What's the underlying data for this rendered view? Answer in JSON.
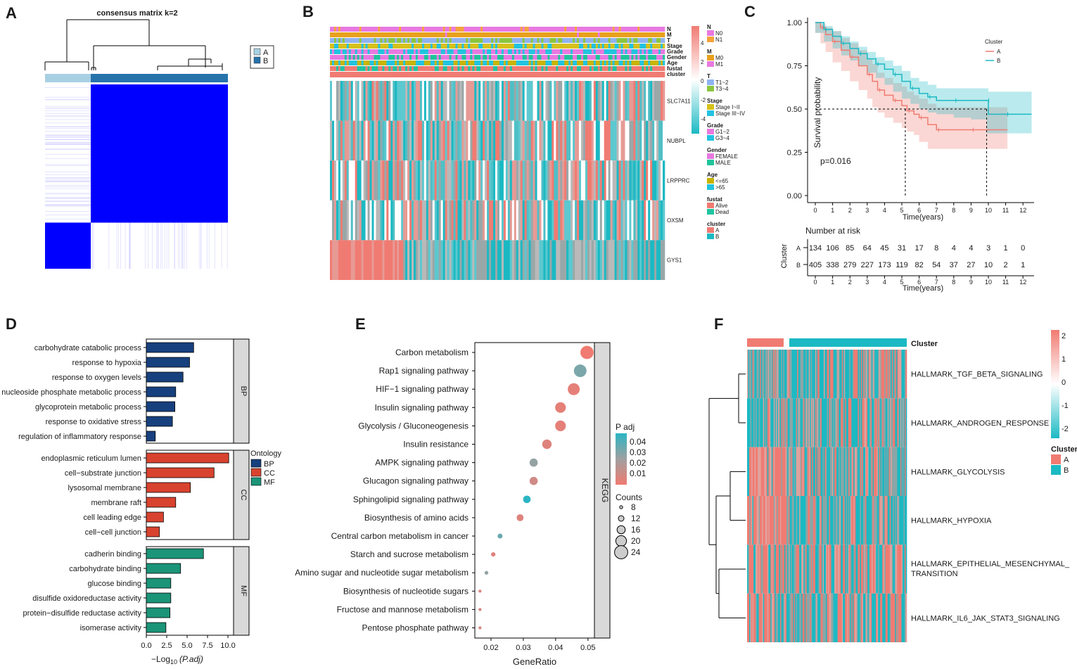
{
  "colors": {
    "heat_blue": "#0000ff",
    "cluster_a": "#f07b72",
    "cluster_b": "#1bb9c3",
    "bp": "#17407e",
    "cc": "#d8432f",
    "mf": "#1b9478",
    "strip_gray": "#d9d9d9"
  },
  "chart_data": [
    {
      "panel": "A",
      "type": "heatmap",
      "title": "consensus matrix k=2",
      "legend": [
        {
          "label": "A",
          "color": "#a8d0e3"
        },
        {
          "label": "B",
          "color": "#2673ac"
        }
      ],
      "groups": [
        {
          "name": "A",
          "fraction": 0.25
        },
        {
          "name": "B",
          "fraction": 0.75
        }
      ]
    },
    {
      "panel": "B",
      "type": "heatmap",
      "annotation_tracks": [
        "N",
        "M",
        "T",
        "Stage",
        "Grade",
        "Gender",
        "Age",
        "fustat",
        "cluster"
      ],
      "genes": [
        "SLC7A11",
        "NUBPL",
        "LRPPRC",
        "OXSM",
        "GYS1"
      ],
      "scale_ticks": [
        4,
        2,
        0,
        -2,
        -4
      ],
      "legend_groups": [
        {
          "title": "N",
          "items": [
            {
              "label": "N0",
              "color": "#e879e0"
            },
            {
              "label": "N1",
              "color": "#f5a33b"
            }
          ]
        },
        {
          "title": "M",
          "items": [
            {
              "label": "M0",
              "color": "#e8a01d"
            },
            {
              "label": "M1",
              "color": "#e879e0"
            }
          ]
        },
        {
          "title": "T",
          "items": [
            {
              "label": "T1~2",
              "color": "#8fb3f2"
            },
            {
              "label": "T3~4",
              "color": "#8cc63f"
            }
          ]
        },
        {
          "title": "Stage",
          "items": [
            {
              "label": "Stage I~II",
              "color": "#d6c11b"
            },
            {
              "label": "Stage III~IV",
              "color": "#22c3e0"
            }
          ]
        },
        {
          "title": "Grade",
          "items": [
            {
              "label": "G1~2",
              "color": "#e879e0"
            },
            {
              "label": "G3~4",
              "color": "#22c3e0"
            }
          ]
        },
        {
          "title": "Gender",
          "items": [
            {
              "label": "FEMALE",
              "color": "#e879e0"
            },
            {
              "label": "MALE",
              "color": "#1fc49b"
            }
          ]
        },
        {
          "title": "Age",
          "items": [
            {
              "label": "<=65",
              "color": "#c8b400"
            },
            {
              "label": ">65",
              "color": "#22c3e0"
            }
          ]
        },
        {
          "title": "fustat",
          "items": [
            {
              "label": "Alive",
              "color": "#f07b72"
            },
            {
              "label": "Dead",
              "color": "#1fc4a0"
            }
          ]
        },
        {
          "title": "cluster",
          "items": [
            {
              "label": "A",
              "color": "#f07b72"
            },
            {
              "label": "B",
              "color": "#1bb9c3"
            }
          ]
        }
      ]
    },
    {
      "panel": "C",
      "type": "line",
      "title": "",
      "xlabel": "Time(years)",
      "ylabel": "Survival probability",
      "xlim": [
        -0.5,
        13
      ],
      "ylim": [
        0,
        1
      ],
      "x_ticks": [
        0,
        1,
        2,
        3,
        4,
        5,
        6,
        7,
        8,
        9,
        10,
        11,
        12
      ],
      "y_ticks": [
        "0.00",
        "0.25",
        "0.50",
        "0.75",
        "1.00"
      ],
      "legend_title": "Cluster",
      "pvalue": "p=0.016",
      "median_survival": {
        "A": 5.2,
        "B": 9.9
      },
      "series": [
        {
          "name": "A",
          "color": "#f07b72",
          "x": [
            0,
            0.3,
            0.6,
            1,
            1.5,
            2,
            2.5,
            3,
            3.3,
            3.6,
            4,
            4.5,
            5,
            5.3,
            5.7,
            6,
            6.5,
            7,
            8,
            9,
            10,
            11.1
          ],
          "y": [
            1,
            0.97,
            0.93,
            0.89,
            0.84,
            0.8,
            0.75,
            0.7,
            0.66,
            0.61,
            0.58,
            0.55,
            0.52,
            0.49,
            0.47,
            0.45,
            0.41,
            0.38,
            0.38,
            0.38,
            0.38,
            0.38
          ],
          "ci_lower": [
            1,
            0.94,
            0.88,
            0.83,
            0.77,
            0.72,
            0.66,
            0.61,
            0.56,
            0.51,
            0.48,
            0.45,
            0.42,
            0.39,
            0.37,
            0.35,
            0.31,
            0.27,
            0.27,
            0.27,
            0.27,
            0.27
          ],
          "ci_upper": [
            1,
            0.99,
            0.97,
            0.95,
            0.91,
            0.88,
            0.84,
            0.79,
            0.76,
            0.71,
            0.68,
            0.65,
            0.63,
            0.6,
            0.58,
            0.56,
            0.53,
            0.51,
            0.51,
            0.51,
            0.51,
            0.51
          ]
        },
        {
          "name": "B",
          "color": "#1bb9c3",
          "x": [
            0,
            0.5,
            1,
            1.5,
            2,
            2.5,
            3,
            3.5,
            4,
            4.5,
            5,
            5.5,
            6,
            6.5,
            7,
            8,
            9,
            9.9,
            10,
            11,
            12.5
          ],
          "y": [
            1,
            0.96,
            0.92,
            0.88,
            0.85,
            0.82,
            0.79,
            0.76,
            0.73,
            0.7,
            0.66,
            0.62,
            0.59,
            0.57,
            0.55,
            0.55,
            0.55,
            0.55,
            0.47,
            0.47,
            0.47
          ],
          "ci_lower": [
            1,
            0.94,
            0.89,
            0.85,
            0.81,
            0.78,
            0.75,
            0.71,
            0.68,
            0.64,
            0.6,
            0.56,
            0.53,
            0.5,
            0.48,
            0.47,
            0.45,
            0.44,
            0.36,
            0.36,
            0.36
          ],
          "ci_upper": [
            1,
            0.98,
            0.95,
            0.92,
            0.89,
            0.86,
            0.83,
            0.8,
            0.78,
            0.75,
            0.72,
            0.68,
            0.66,
            0.64,
            0.62,
            0.62,
            0.62,
            0.62,
            0.6,
            0.6,
            0.6
          ]
        }
      ],
      "risk_table": {
        "title": "Number at risk",
        "ylabel": "Cluster",
        "xlabel": "Time(years)",
        "rows": [
          {
            "name": "A",
            "values": [
              134,
              106,
              85,
              64,
              45,
              31,
              17,
              8,
              4,
              4,
              3,
              1,
              0
            ]
          },
          {
            "name": "B",
            "values": [
              405,
              338,
              279,
              227,
              173,
              119,
              82,
              54,
              37,
              27,
              10,
              2,
              1
            ]
          }
        ]
      }
    },
    {
      "panel": "D",
      "type": "bar",
      "orientation": "horizontal",
      "xlabel": "−Log",
      "xlabel_sub": "10",
      "xlabel_tail": "(P.adj)",
      "xlim": [
        0,
        10.5
      ],
      "x_ticks": [
        "0.0",
        "2.5",
        "5.0",
        "7.5",
        "10.0"
      ],
      "legend_title": "Ontology",
      "groups": [
        {
          "name": "BP",
          "color": "#17407e",
          "categories": [
            "carbohydrate catabolic process",
            "response to hypoxia",
            "response to oxygen levels",
            "nucleoside phosphate metabolic process",
            "glycoprotein metabolic process",
            "response to oxidative stress",
            "regulation of inflammatory response"
          ],
          "values": [
            5.8,
            5.3,
            4.5,
            3.6,
            3.5,
            3.2,
            1.1
          ]
        },
        {
          "name": "CC",
          "color": "#d8432f",
          "categories": [
            "endoplasmic reticulum lumen",
            "cell−substrate junction",
            "lysosomal membrane",
            "membrane raft",
            "cell leading edge",
            "cell−cell junction"
          ],
          "values": [
            10.1,
            8.3,
            5.4,
            3.6,
            2.1,
            1.6
          ]
        },
        {
          "name": "MF",
          "color": "#1b9478",
          "categories": [
            "cadherin binding",
            "carbohydrate binding",
            "glucose binding",
            "disulfide oxidoreductase activity",
            "protein−disulfide reductase activity",
            "isomerase activity"
          ],
          "values": [
            7.0,
            4.2,
            3.0,
            3.0,
            2.9,
            2.4
          ]
        }
      ]
    },
    {
      "panel": "E",
      "type": "scatter",
      "xlabel": "GeneRatio",
      "xlim": [
        0.015,
        0.052
      ],
      "x_ticks": [
        "0.02",
        "0.03",
        "0.04",
        "0.05"
      ],
      "facet": "KEGG",
      "color_legend_title": "P adj",
      "color_ticks": [
        "0.04",
        "0.03",
        "0.02",
        "0.01"
      ],
      "size_legend_title": "Counts",
      "size_ticks": [
        8,
        12,
        16,
        20,
        24
      ],
      "points": [
        {
          "term": "Carbon metabolism",
          "x": 0.0497,
          "count": 24,
          "padj": 0.001
        },
        {
          "term": "Rap1 signaling pathway",
          "x": 0.0476,
          "count": 23,
          "padj": 0.03
        },
        {
          "term": "HIF−1 signaling pathway",
          "x": 0.0456,
          "count": 22,
          "padj": 0.004
        },
        {
          "term": "Insulin signaling pathway",
          "x": 0.0415,
          "count": 20,
          "padj": 0.004
        },
        {
          "term": "Glycolysis / Gluconeogenesis",
          "x": 0.0415,
          "count": 20,
          "padj": 0.004
        },
        {
          "term": "Insulin resistance",
          "x": 0.0373,
          "count": 18,
          "padj": 0.006
        },
        {
          "term": "AMPK signaling pathway",
          "x": 0.0332,
          "count": 16,
          "padj": 0.025
        },
        {
          "term": "Glucagon signaling pathway",
          "x": 0.0332,
          "count": 16,
          "padj": 0.01
        },
        {
          "term": "Sphingolipid signaling pathway",
          "x": 0.0311,
          "count": 15,
          "padj": 0.045
        },
        {
          "term": "Biosynthesis of amino acids",
          "x": 0.029,
          "count": 14,
          "padj": 0.006
        },
        {
          "term": "Central carbon metabolism in cancer",
          "x": 0.0228,
          "count": 11,
          "padj": 0.033
        },
        {
          "term": "Starch and sucrose metabolism",
          "x": 0.0207,
          "count": 10,
          "padj": 0.006
        },
        {
          "term": "Amino sugar and nucleotide sugar metabolism",
          "x": 0.0186,
          "count": 9,
          "padj": 0.025
        },
        {
          "term": "Biosynthesis of nucleotide sugars",
          "x": 0.0166,
          "count": 8,
          "padj": 0.008
        },
        {
          "term": "Fructose and mannose metabolism",
          "x": 0.0166,
          "count": 8,
          "padj": 0.008
        },
        {
          "term": "Pentose phosphate pathway",
          "x": 0.0166,
          "count": 8,
          "padj": 0.008
        }
      ]
    },
    {
      "panel": "F",
      "type": "heatmap",
      "column_annotation": "Cluster",
      "legend_title": "Cluster",
      "legend_items": [
        {
          "label": "A",
          "color": "#f07b72"
        },
        {
          "label": "B",
          "color": "#1bb9c3"
        }
      ],
      "scale_ticks": [
        2,
        1,
        0,
        -1,
        -2
      ],
      "rows": [
        "HALLMARK_TGF_BETA_SIGNALING",
        "HALLMARK_ANDROGEN_RESPONSE",
        "HALLMARK_GLYCOLYSIS",
        "HALLMARK_HYPOXIA",
        "HALLMARK_EPITHELIAL_MESENCHYMAL_\nTRANSITION",
        "HALLMARK_IL6_JAK_STAT3_SIGNALING"
      ],
      "row_labels_line1": [
        "HALLMARK_TGF_BETA_SIGNALING",
        "HALLMARK_ANDROGEN_RESPONSE",
        "HALLMARK_GLYCOLYSIS",
        "HALLMARK_HYPOXIA",
        "HALLMARK_EPITHELIAL_MESENCHYMAL_",
        "HALLMARK_IL6_JAK_STAT3_SIGNALING"
      ],
      "row_labels_line2": [
        "",
        "",
        "",
        "",
        "TRANSITION",
        ""
      ]
    }
  ],
  "panel_letters": [
    "A",
    "B",
    "C",
    "D",
    "E",
    "F"
  ]
}
